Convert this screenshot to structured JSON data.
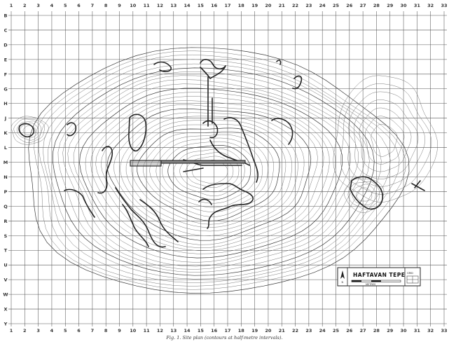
{
  "map": {
    "column_labels": [
      "1",
      "2",
      "3",
      "4",
      "5",
      "6",
      "7",
      "8",
      "9",
      "10",
      "11",
      "12",
      "13",
      "14",
      "15",
      "16",
      "17",
      "18",
      "19",
      "20",
      "21",
      "22",
      "23",
      "24",
      "25",
      "26",
      "27",
      "28",
      "29",
      "30",
      "31",
      "32",
      "33"
    ],
    "row_labels": [
      "B",
      "C",
      "D",
      "E",
      "F",
      "G",
      "H",
      "J",
      "K",
      "L",
      "M",
      "N",
      "P",
      "Q",
      "R",
      "S",
      "T",
      "U",
      "V",
      "W",
      "X",
      "Y"
    ],
    "legend": {
      "title": "HAFTAVAN TEPE",
      "north_label": "N",
      "scale_label": "METRES",
      "grid_label": "GRID"
    },
    "caption": "Fig. 1. Site plan (contours at half-metre intervals)."
  },
  "colors": {
    "ink": "#222222",
    "paper": "#ffffff",
    "contour": "#6a6a6a"
  }
}
